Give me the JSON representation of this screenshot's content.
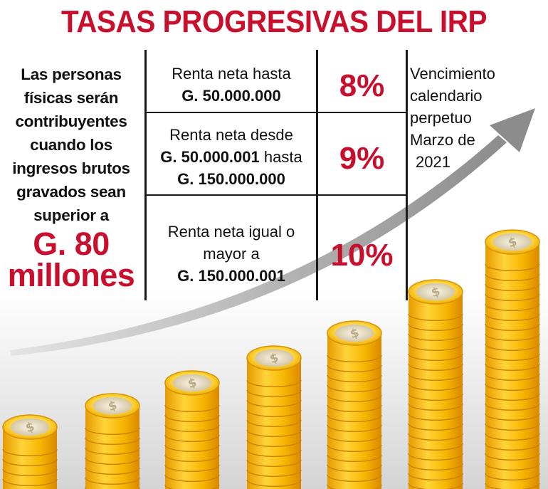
{
  "title": "TASAS PROGRESIVAS DEL IRP",
  "left": {
    "text": "Las personas físicas serán contribuyentes cuando los ingresos brutos gravados sean superior a",
    "amount": "G. 80 millones"
  },
  "brackets": [
    {
      "line1": "Renta neta hasta",
      "amount": "G. 50.000.000",
      "rate": "8%"
    },
    {
      "line1": "Renta neta desde",
      "amount": "G. 50.000.001",
      "mid": "hasta",
      "amount2": "G. 150.000.000",
      "rate": "9%"
    },
    {
      "line1": "Renta neta igual o",
      "line2": "mayor a",
      "amount": "G. 150.000.001",
      "rate": "10%"
    }
  ],
  "due": {
    "lines": [
      "Vencimiento",
      "calendario",
      "perpetuo",
      "Marzo de",
      "2021"
    ]
  },
  "colors": {
    "title": "#c8102e",
    "rate": "#c8102e",
    "coin": "#f5b400",
    "arrow": "#9a9a9a"
  },
  "coin_symbol": "$"
}
